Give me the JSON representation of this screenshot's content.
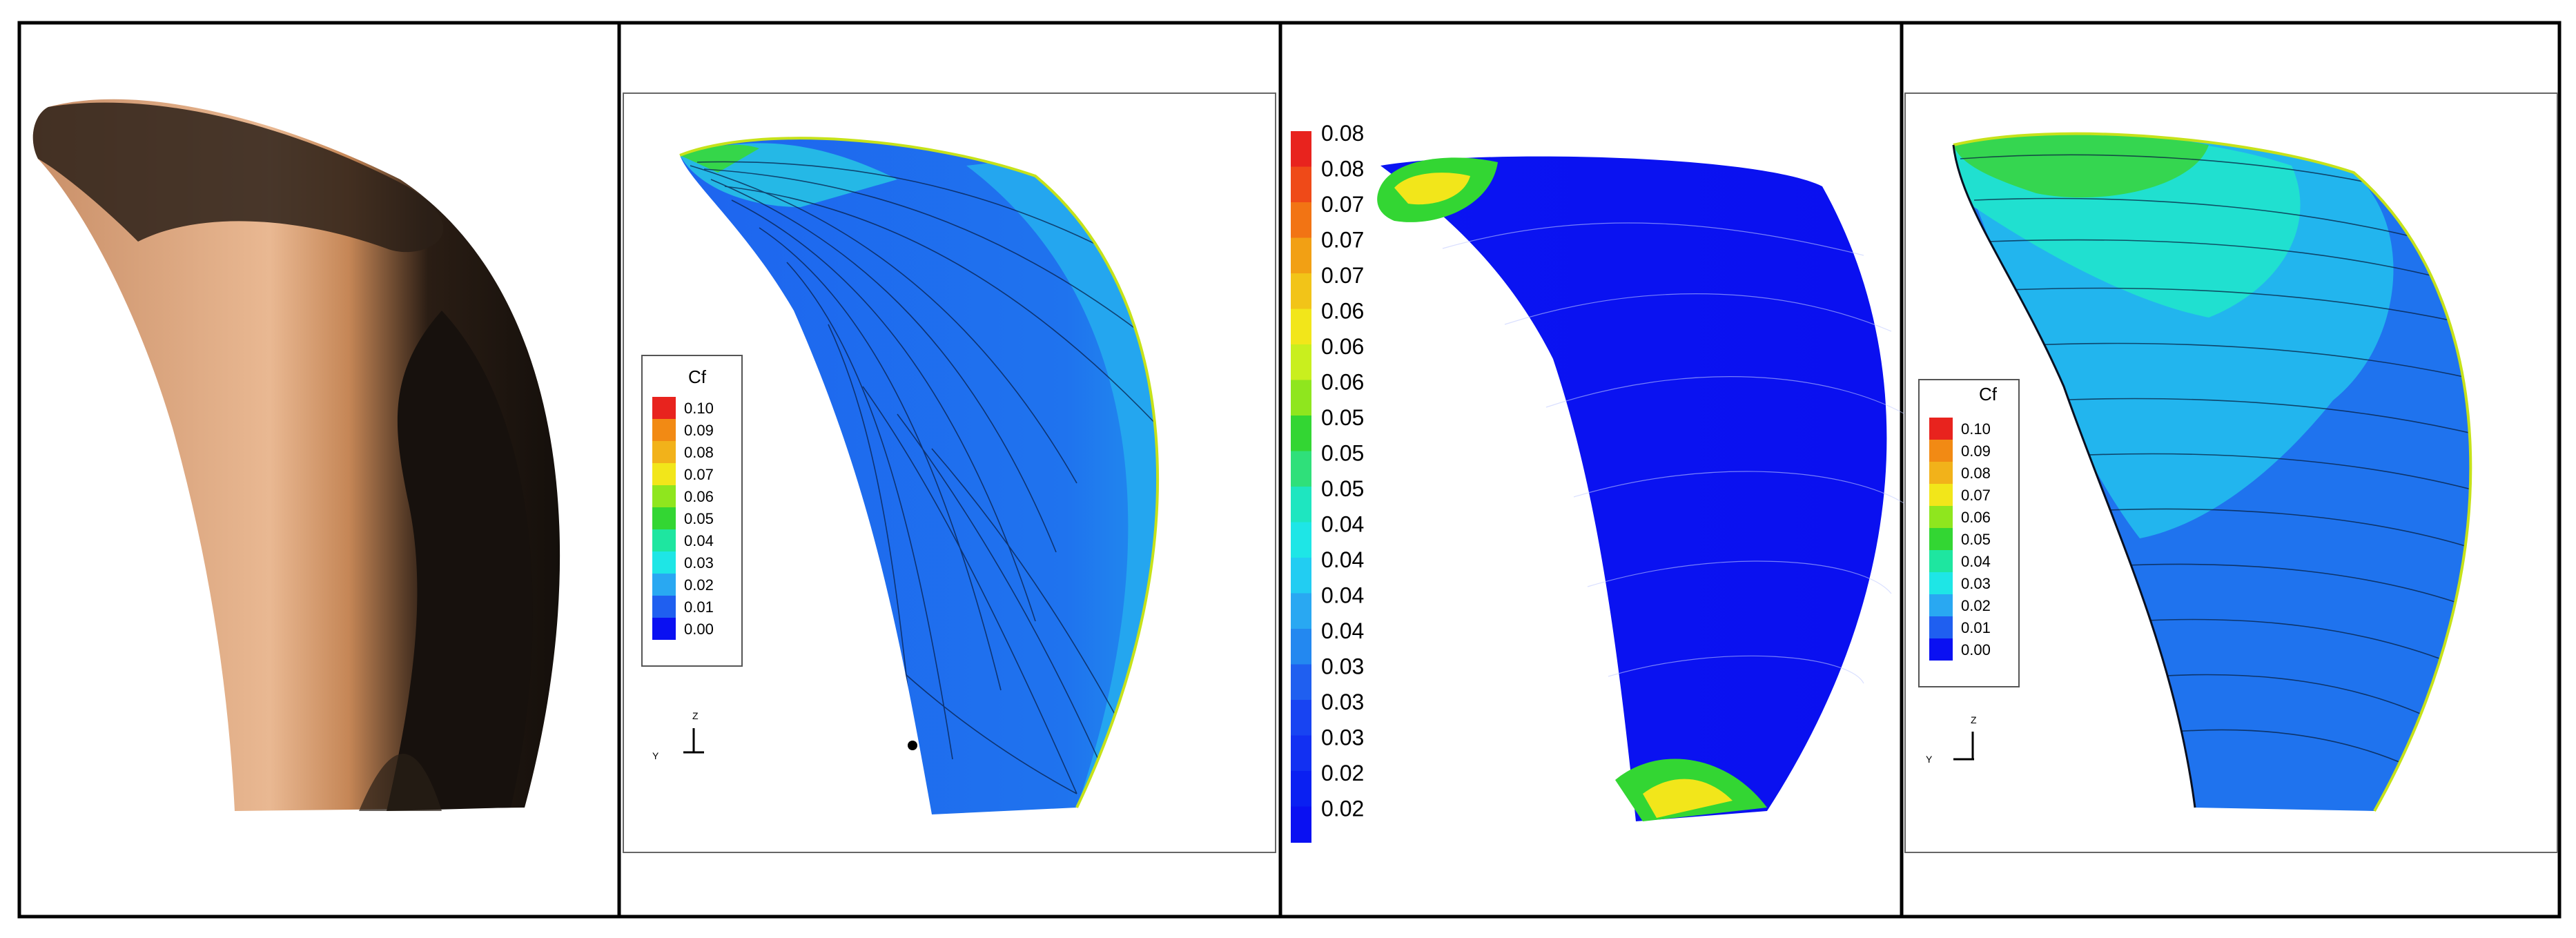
{
  "figure": {
    "panels": [
      {
        "id": "photo",
        "description_name": "propeller-blade-photo"
      },
      {
        "id": "cfd-a",
        "legend_title": "Cf",
        "legend_ticks": [
          "0.10",
          "0.09",
          "0.08",
          "0.07",
          "0.06",
          "0.05",
          "0.04",
          "0.03",
          "0.02",
          "0.01",
          "0.00"
        ],
        "axis_labels": {
          "horizontal": "Y",
          "vertical": "Z"
        }
      },
      {
        "id": "cfd-b",
        "colorbar_ticks": [
          "0.08",
          "0.08",
          "0.07",
          "0.07",
          "0.07",
          "0.06",
          "0.06",
          "0.06",
          "0.05",
          "0.05",
          "0.05",
          "0.04",
          "0.04",
          "0.04",
          "0.04",
          "0.03",
          "0.03",
          "0.03",
          "0.02",
          "0.02"
        ]
      },
      {
        "id": "cfd-c",
        "legend_title": "Cf",
        "legend_ticks": [
          "0.10",
          "0.09",
          "0.08",
          "0.07",
          "0.06",
          "0.05",
          "0.04",
          "0.03",
          "0.02",
          "0.01",
          "0.00"
        ],
        "axis_labels": {
          "horizontal": "Y",
          "vertical": "Z"
        }
      }
    ]
  },
  "colors": {
    "red": "#e8231e",
    "orange": "#f28a14",
    "yellow": "#f2e61a",
    "green": "#33d633",
    "cyan": "#1ee6e6",
    "lightblue": "#29a8f2",
    "blue": "#1f5ff0",
    "deepblue": "#0a10f2",
    "bronze_light": "#e8b38a",
    "bronze_dark": "#1b1410"
  }
}
